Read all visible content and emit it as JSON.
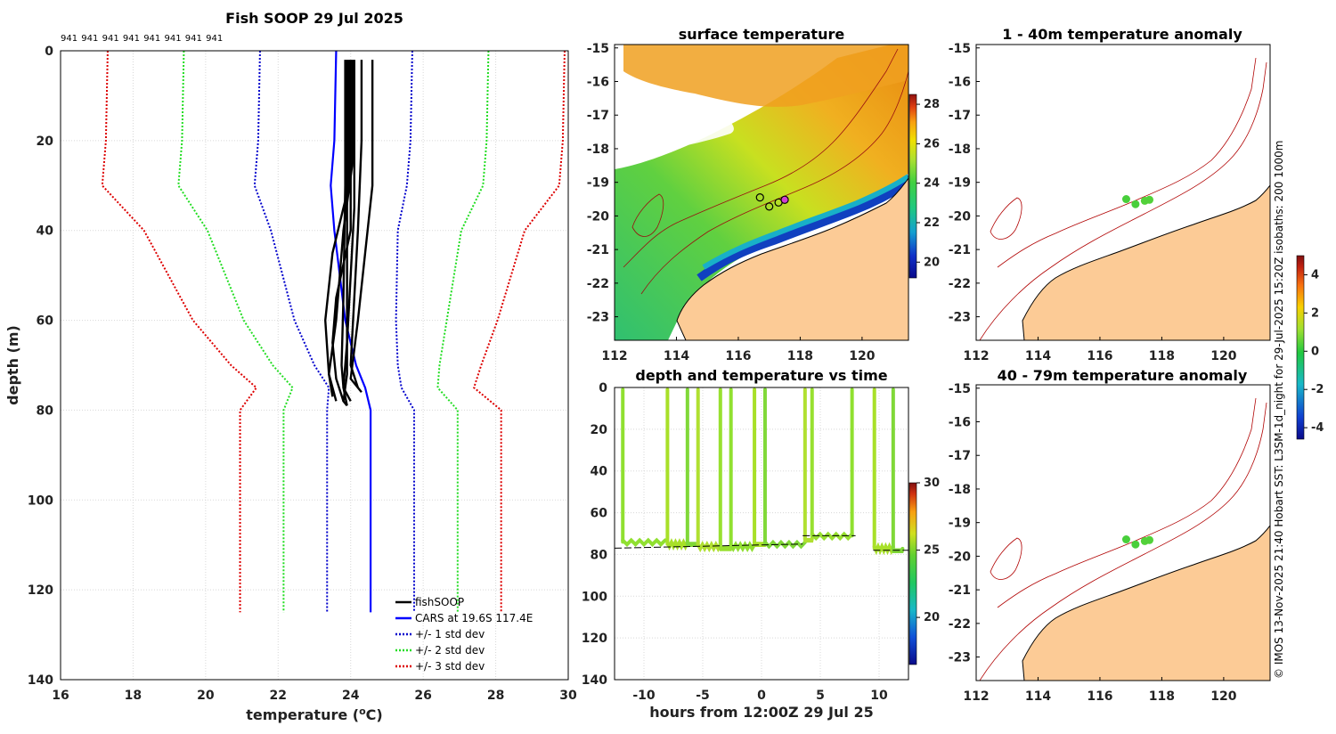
{
  "colors": {
    "fish": "#000000",
    "cars": "#0000ff",
    "std1": "#0000cc",
    "std2": "#22dd22",
    "std3": "#dd0000",
    "land": "#fccb96",
    "isobath": "#b00000",
    "anomaly_dot": "#22cc44"
  },
  "chart_data": [
    {
      "id": "profile",
      "type": "line",
      "title": "Fish SOOP 29 Jul 2025",
      "xlabel": "temperature (",
      "xlabel_sup": "o",
      "xlabel_end": "C)",
      "ylabel": "depth (m)",
      "xlim": [
        16,
        30
      ],
      "ylim": [
        0,
        140
      ],
      "xticks": [
        "16",
        "18",
        "20",
        "22",
        "24",
        "26",
        "28",
        "30"
      ],
      "yticks": [
        "0",
        "20",
        "40",
        "60",
        "80",
        "100",
        "120",
        "140"
      ],
      "profile_counts": [
        "941",
        "941",
        "941",
        "941",
        "941",
        "941",
        "941",
        "941"
      ],
      "legend": [
        "fishSOOP",
        "CARS at 19.6S 117.4E",
        "+/- 1 std dev",
        "+/- 2 std dev",
        "+/- 3 std dev"
      ],
      "depth": [
        0,
        20,
        30,
        40,
        60,
        70,
        75,
        80,
        125
      ],
      "cars_mean": [
        23.6,
        23.55,
        23.45,
        23.55,
        23.85,
        24.15,
        24.4,
        24.55,
        24.55
      ],
      "std_offset": [
        2.1,
        2.1,
        2.1,
        1.75,
        1.4,
        1.15,
        1.0,
        1.2,
        1.2
      ],
      "fish_profiles": [
        {
          "depth": [
            2,
            30,
            50,
            72,
            78,
            79
          ],
          "temp": [
            23.9,
            23.9,
            23.9,
            23.9,
            23.8,
            23.9
          ]
        },
        {
          "depth": [
            2,
            40,
            55,
            65,
            73,
            78
          ],
          "temp": [
            24.0,
            24.0,
            23.6,
            23.5,
            23.6,
            23.8
          ]
        },
        {
          "depth": [
            2,
            30,
            45,
            60,
            72,
            78
          ],
          "temp": [
            23.95,
            23.95,
            23.5,
            23.3,
            23.4,
            23.6
          ]
        },
        {
          "depth": [
            2,
            25,
            40,
            60,
            72,
            77
          ],
          "temp": [
            24.05,
            24.05,
            23.8,
            23.6,
            23.4,
            23.5
          ]
        },
        {
          "depth": [
            2,
            30,
            45,
            60,
            73,
            76
          ],
          "temp": [
            24.6,
            24.6,
            24.4,
            24.2,
            24.0,
            24.3
          ]
        },
        {
          "depth": [
            2,
            20,
            40,
            55,
            70,
            75
          ],
          "temp": [
            24.3,
            24.3,
            24.2,
            24.1,
            24.0,
            24.2
          ]
        },
        {
          "depth": [
            2,
            30,
            55,
            70,
            75,
            79
          ],
          "temp": [
            23.85,
            23.85,
            23.8,
            23.75,
            23.8,
            23.9
          ]
        },
        {
          "depth": [
            2,
            35,
            50,
            65,
            75,
            78
          ],
          "temp": [
            24.1,
            24.1,
            24.0,
            23.9,
            23.8,
            24.0
          ]
        }
      ]
    },
    {
      "id": "sst_map",
      "type": "heatmap",
      "title": "surface temperature",
      "xlim": [
        112,
        121.5
      ],
      "ylim": [
        -23.7,
        -14.9
      ],
      "xticks": [
        "112",
        "114",
        "116",
        "118",
        "120"
      ],
      "yticks": [
        "-15",
        "-16",
        "-17",
        "-18",
        "-19",
        "-20",
        "-21",
        "-22",
        "-23"
      ],
      "colorbar_ticks": [
        "28",
        "26",
        "24",
        "22",
        "20"
      ],
      "colorbar_range": [
        19.2,
        28.5
      ],
      "stations": [
        {
          "lon": 116.7,
          "lat": -19.45
        },
        {
          "lon": 117.0,
          "lat": -19.72
        },
        {
          "lon": 117.3,
          "lat": -19.6
        },
        {
          "lon": 117.5,
          "lat": -19.52
        }
      ]
    },
    {
      "id": "depth_time",
      "type": "scatter",
      "title": "depth and temperature vs time",
      "xlabel": "hours from 12:00Z 29 Jul 25",
      "xlim": [
        -12.5,
        12.5
      ],
      "ylim": [
        0,
        140
      ],
      "xticks": [
        "-10",
        "-5",
        "0",
        "5",
        "10"
      ],
      "yticks": [
        "0",
        "20",
        "40",
        "60",
        "80",
        "100",
        "120",
        "140"
      ],
      "colorbar_ticks": [
        "30",
        "25",
        "20"
      ],
      "colorbar_range": [
        16.5,
        30
      ],
      "drop_times": [
        -11.8,
        -8.0,
        -6.3,
        -5.4,
        -3.5,
        -2.6,
        -0.6,
        0.3,
        3.7,
        4.3,
        7.7,
        9.6,
        11.2
      ],
      "bottom_depths": [
        74,
        75,
        75,
        75,
        77,
        76,
        75,
        75,
        73,
        71,
        71,
        77,
        78
      ],
      "bottom_line": {
        "t": [
          -12.5,
          3.5
        ],
        "depth": [
          77,
          75
        ]
      },
      "bottom_line_2": {
        "t": [
          3.5,
          8
        ],
        "depth": [
          71,
          71
        ]
      },
      "bottom_line_3": {
        "t": [
          9.5,
          12.5
        ],
        "depth": [
          78,
          78
        ]
      }
    },
    {
      "id": "anomaly_shallow",
      "type": "scatter",
      "title": "1 - 40m temperature anomaly",
      "xlim": [
        112,
        121.5
      ],
      "ylim": [
        -23.7,
        -14.9
      ],
      "xticks": [
        "112",
        "114",
        "116",
        "118",
        "120"
      ],
      "yticks": [
        "-15",
        "-16",
        "-17",
        "-18",
        "-19",
        "-20",
        "-21",
        "-22",
        "-23"
      ],
      "points": [
        {
          "lon": 116.85,
          "lat": -19.5,
          "anomaly": 0.3
        },
        {
          "lon": 117.15,
          "lat": -19.65,
          "anomaly": 0.3
        },
        {
          "lon": 117.45,
          "lat": -19.55,
          "anomaly": 0.4
        },
        {
          "lon": 117.6,
          "lat": -19.52,
          "anomaly": 0.4
        }
      ]
    },
    {
      "id": "anomaly_deep",
      "type": "scatter",
      "title": "40 - 79m temperature anomaly",
      "xlim": [
        112,
        121.5
      ],
      "ylim": [
        -23.7,
        -14.9
      ],
      "xticks": [
        "112",
        "114",
        "116",
        "118",
        "120"
      ],
      "yticks": [
        "-15",
        "-16",
        "-17",
        "-18",
        "-19",
        "-20",
        "-21",
        "-22",
        "-23"
      ],
      "colorbar_ticks": [
        "4",
        "2",
        "0",
        "-2",
        "-4"
      ],
      "colorbar_range": [
        -4.6,
        5.0
      ],
      "points": [
        {
          "lon": 116.85,
          "lat": -19.5,
          "anomaly": 0.3
        },
        {
          "lon": 117.15,
          "lat": -19.65,
          "anomaly": 0.3
        },
        {
          "lon": 117.45,
          "lat": -19.55,
          "anomaly": 0.4
        },
        {
          "lon": 117.6,
          "lat": -19.52,
          "anomaly": 0.4
        }
      ]
    }
  ],
  "credit": "© IMOS 13-Nov-2025 21:40 Hobart SST: L3SM-1d_night for 29-Jul-2025 15:20Z isobaths: 200  1000m"
}
